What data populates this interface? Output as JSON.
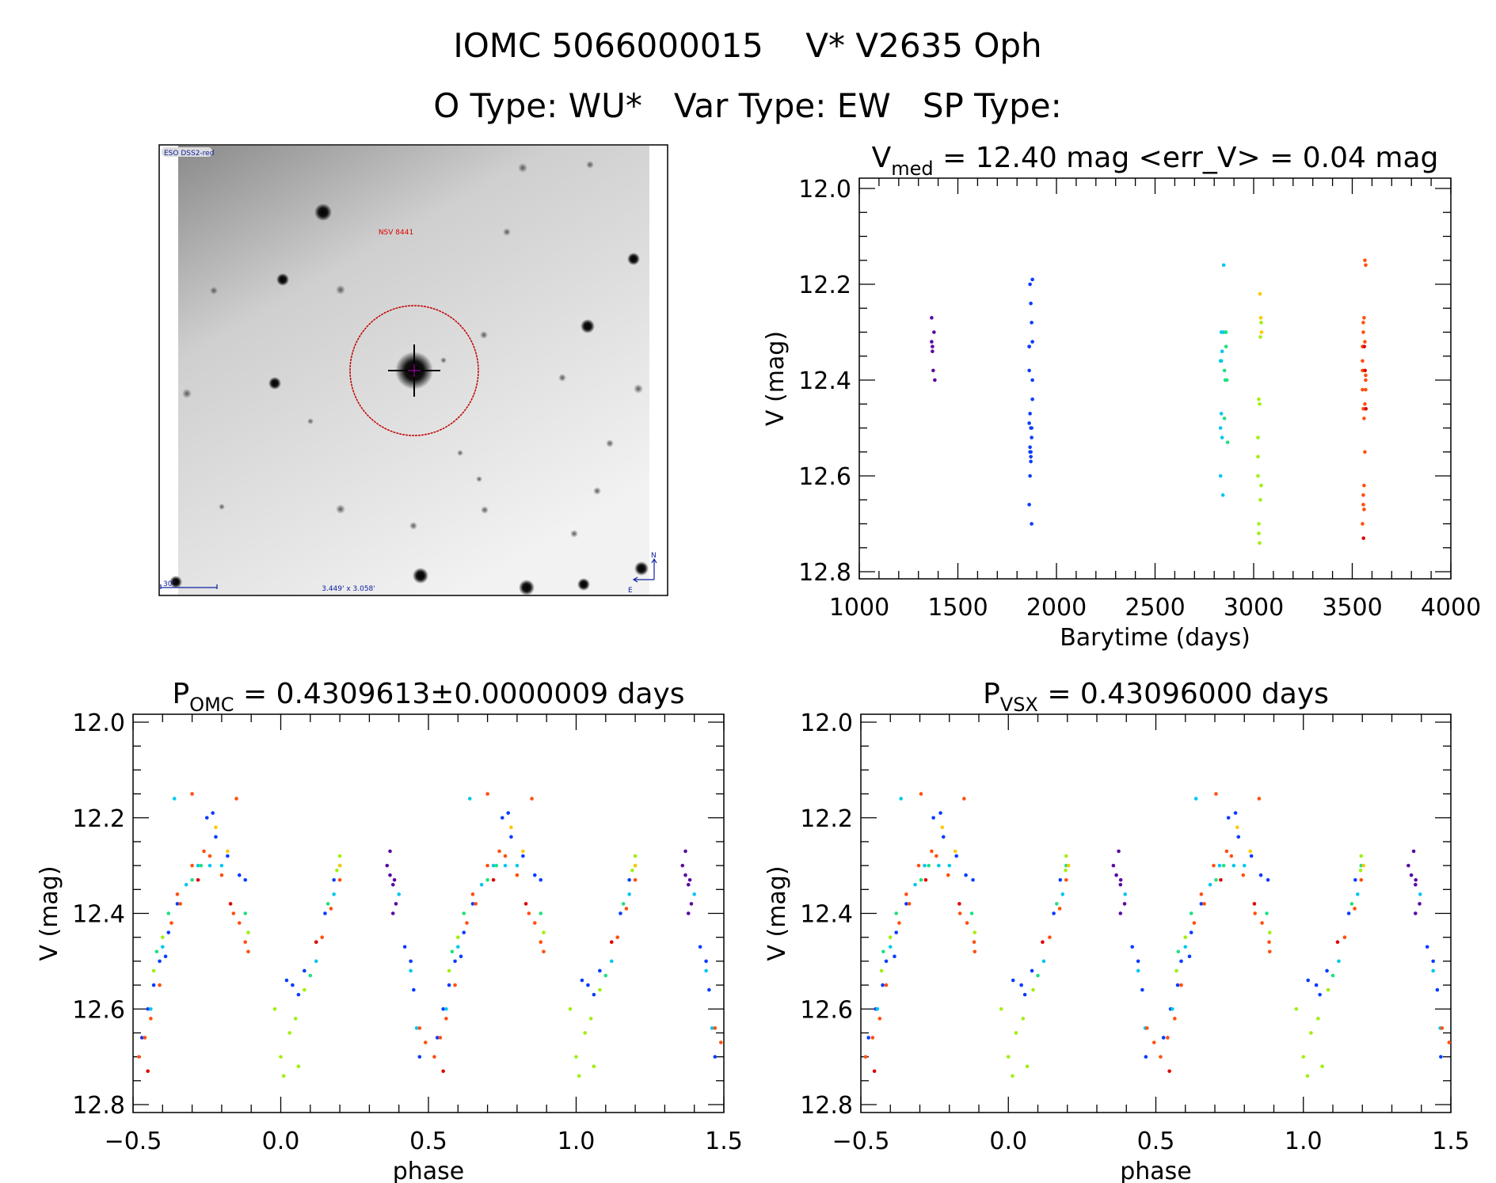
{
  "header": {
    "title_line1": "IOMC 5066000015    V* V2635 Oph",
    "title_line2": "O Type: WU*   Var Type: EW   SP Type:"
  },
  "sky_image": {
    "survey_label": "ESO DSS2-red",
    "object_label": "NSV 8441",
    "scale_label": "30\"",
    "field_label": "3.449' x 3.058'",
    "north_label": "N",
    "east_label": "E"
  },
  "chart_data": [
    {
      "type": "scatter",
      "id": "time",
      "title_main": "V",
      "title_sub": "med",
      "title_rest": " = 12.40 mag <err_V> = 0.04 mag",
      "xlabel": "Barytime (days)",
      "ylabel": "V (mag)",
      "xlim": [
        1000,
        4000
      ],
      "ylim": [
        12.8,
        12.0
      ],
      "xticks": [
        "1000",
        "1500",
        "2000",
        "2500",
        "3000",
        "3500",
        "4000"
      ],
      "yticks": [
        "12.0",
        "12.2",
        "12.4",
        "12.6",
        "12.8"
      ]
    },
    {
      "type": "scatter",
      "id": "phase_omc",
      "title_main": "P",
      "title_sub": "OMC",
      "title_rest": " = 0.4309613±0.0000009 days",
      "xlabel": "phase",
      "ylabel": "V (mag)",
      "xlim": [
        -0.5,
        1.5
      ],
      "ylim": [
        12.8,
        12.0
      ],
      "xticks": [
        "−0.5",
        "0.0",
        "0.5",
        "1.0",
        "1.5"
      ],
      "yticks": [
        "12.0",
        "12.2",
        "12.4",
        "12.6",
        "12.8"
      ]
    },
    {
      "type": "scatter",
      "id": "phase_vsx",
      "title_main": "P",
      "title_sub": "VSX",
      "title_rest": " = 0.43096000 days",
      "xlabel": "phase",
      "ylabel": "V (mag)",
      "xlim": [
        -0.5,
        1.5
      ],
      "ylim": [
        12.8,
        12.0
      ],
      "xticks": [
        "−0.5",
        "0.0",
        "0.5",
        "1.0",
        "1.5"
      ],
      "yticks": [
        "12.0",
        "12.2",
        "12.4",
        "12.6",
        "12.8"
      ]
    }
  ],
  "seasons": [
    {
      "color": "#5a0aa0",
      "t": 1375,
      "points": [
        [
          0.37,
          12.32
        ],
        [
          0.38,
          12.34
        ],
        [
          0.39,
          12.38
        ],
        [
          0.36,
          12.3
        ],
        [
          0.38,
          12.4
        ],
        [
          0.37,
          12.27
        ],
        [
          0.385,
          12.33
        ]
      ]
    },
    {
      "color": "#0a3cff",
      "t": 1870,
      "points": [
        [
          -0.47,
          12.66
        ],
        [
          -0.45,
          12.6
        ],
        [
          -0.43,
          12.55
        ],
        [
          -0.41,
          12.5
        ],
        [
          -0.38,
          12.44
        ],
        [
          -0.35,
          12.38
        ],
        [
          -0.25,
          12.2
        ],
        [
          -0.22,
          12.24
        ],
        [
          -0.18,
          12.28
        ],
        [
          -0.14,
          12.32
        ],
        [
          -0.12,
          12.33
        ],
        [
          0.04,
          12.55
        ],
        [
          0.06,
          12.57
        ],
        [
          0.08,
          12.52
        ],
        [
          0.15,
          12.4
        ],
        [
          0.18,
          12.33
        ],
        [
          0.42,
          12.47
        ],
        [
          0.45,
          12.56
        ],
        [
          0.47,
          12.7
        ],
        [
          -0.23,
          12.19
        ],
        [
          -0.39,
          12.49
        ],
        [
          0.02,
          12.54
        ],
        [
          0.44,
          12.5
        ]
      ]
    },
    {
      "color": "#00c8ee",
      "t": 2840,
      "points": [
        [
          -0.44,
          12.6
        ],
        [
          -0.4,
          12.47
        ],
        [
          -0.32,
          12.34
        ],
        [
          -0.28,
          12.3
        ],
        [
          -0.2,
          12.3
        ],
        [
          0.18,
          12.36
        ],
        [
          0.4,
          12.36
        ],
        [
          0.44,
          12.52
        ],
        [
          0.46,
          12.64
        ],
        [
          -0.36,
          12.16
        ],
        [
          0.12,
          12.5
        ],
        [
          -0.24,
          12.3
        ]
      ]
    },
    {
      "color": "#20e080",
      "t": 2860,
      "points": [
        [
          -0.42,
          12.48
        ],
        [
          -0.38,
          12.4
        ],
        [
          -0.3,
          12.33
        ],
        [
          -0.12,
          12.4
        ],
        [
          0.1,
          12.53
        ],
        [
          0.16,
          12.38
        ],
        [
          0.2,
          12.3
        ],
        [
          -0.27,
          12.3
        ]
      ]
    },
    {
      "color": "#a0f010",
      "t": 3030,
      "points": [
        [
          -0.02,
          12.6
        ],
        [
          0.0,
          12.7
        ],
        [
          0.01,
          12.74
        ],
        [
          0.03,
          12.65
        ],
        [
          0.05,
          12.62
        ],
        [
          0.08,
          12.56
        ],
        [
          -0.11,
          12.44
        ],
        [
          -0.4,
          12.45
        ],
        [
          0.19,
          12.31
        ],
        [
          0.2,
          12.28
        ],
        [
          -0.43,
          12.52
        ],
        [
          0.06,
          12.72
        ]
      ]
    },
    {
      "color": "#ffc800",
      "t": 3040,
      "points": [
        [
          -0.22,
          12.22
        ],
        [
          -0.18,
          12.27
        ],
        [
          0.2,
          12.3
        ]
      ]
    },
    {
      "color": "#ff5010",
      "t": 3560,
      "points": [
        [
          -0.48,
          12.7
        ],
        [
          -0.46,
          12.66
        ],
        [
          -0.44,
          12.62
        ],
        [
          -0.41,
          12.55
        ],
        [
          -0.37,
          12.42
        ],
        [
          -0.34,
          12.38
        ],
        [
          -0.3,
          12.3
        ],
        [
          -0.26,
          12.27
        ],
        [
          -0.3,
          12.15
        ],
        [
          -0.16,
          12.4
        ],
        [
          -0.14,
          12.42
        ],
        [
          -0.12,
          12.46
        ],
        [
          -0.11,
          12.48
        ],
        [
          0.14,
          12.45
        ],
        [
          0.17,
          12.39
        ],
        [
          0.2,
          12.33
        ],
        [
          0.47,
          12.64
        ],
        [
          0.49,
          12.67
        ],
        [
          -0.2,
          12.32
        ],
        [
          -0.15,
          12.16
        ],
        [
          -0.35,
          12.36
        ],
        [
          -0.24,
          12.28
        ]
      ]
    },
    {
      "color": "#e00000",
      "t": 3565,
      "points": [
        [
          -0.45,
          12.73
        ],
        [
          -0.28,
          12.33
        ],
        [
          -0.17,
          12.38
        ],
        [
          0.12,
          12.46
        ]
      ]
    }
  ]
}
